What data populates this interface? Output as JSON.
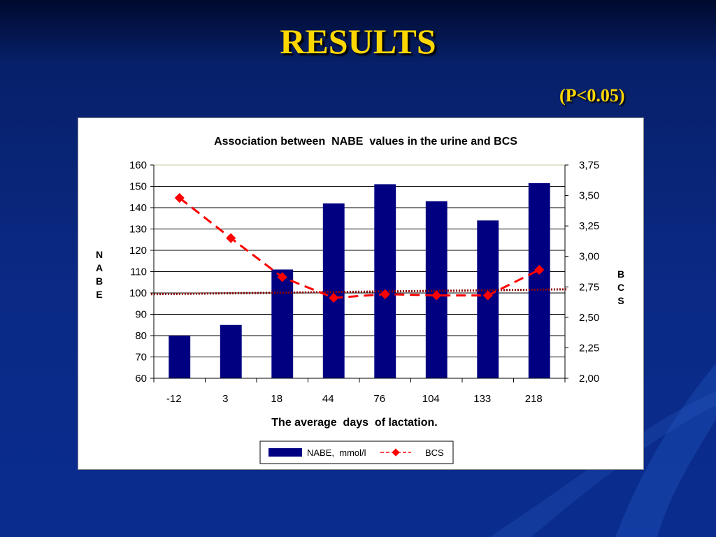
{
  "slide": {
    "title": "RESULTS",
    "significance": "(P<0.05)"
  },
  "chart_data": {
    "type": "bar",
    "title": "Association between  NABE  values in the urine and BCS",
    "xlabel": "The average  days  of lactation.",
    "ylabel": "NABE",
    "y2label": "BCS",
    "categories": [
      "-12",
      "3",
      "18",
      "44",
      "76",
      "104",
      "133",
      "218"
    ],
    "series": [
      {
        "name": "NABE,  mmol/l",
        "kind": "bar",
        "axis": "left",
        "color": "#000080",
        "values": [
          80,
          85,
          111,
          142,
          151,
          143,
          134,
          151.5
        ]
      },
      {
        "name": "BCS",
        "kind": "line",
        "axis": "right",
        "style": "dashed",
        "color": "#ff0000",
        "values": [
          3.48,
          3.15,
          2.83,
          2.66,
          2.69,
          2.68,
          2.68,
          2.89
        ]
      }
    ],
    "trendline": {
      "axis": "right",
      "color": "#8b0000",
      "style": "dotted",
      "start": 2.69,
      "end": 2.73
    },
    "ylim": [
      60,
      160
    ],
    "yticks": [
      "60",
      "70",
      "80",
      "90",
      "100",
      "110",
      "120",
      "130",
      "140",
      "150",
      "160"
    ],
    "y2lim": [
      2.0,
      3.75
    ],
    "y2ticks": [
      "2,00",
      "2,25",
      "2,50",
      "2,75",
      "3,00",
      "3,25",
      "3,50",
      "3,75"
    ],
    "grid": true,
    "legend_position": "bottom"
  }
}
